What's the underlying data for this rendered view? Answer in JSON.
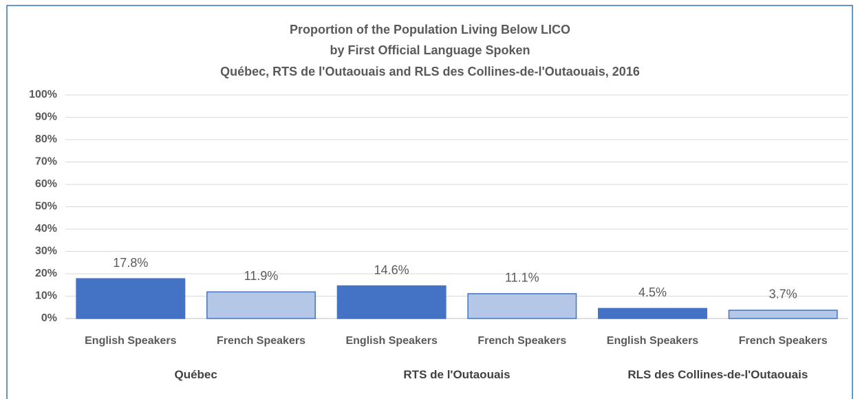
{
  "chart_data": {
    "type": "bar",
    "title": "Proportion of the Population Living Below LICO",
    "subtitle": [
      "by First Official Language Spoken",
      "Québec, RTS de l'Outaouais and RLS des Collines-de-l'Outaouais,  2016"
    ],
    "categories": [
      "Québec",
      "RTS de l'Outaouais",
      "RLS des Collines-de-l'Outaouais"
    ],
    "series": [
      {
        "name": "English Speakers",
        "color": "#4472c4",
        "values": [
          17.8,
          14.6,
          4.5
        ],
        "value_labels": [
          "17.8%",
          "14.6%",
          "4.5%"
        ]
      },
      {
        "name": "French Speakers",
        "color": "#b4c7e7",
        "values": [
          11.9,
          11.1,
          3.7
        ],
        "value_labels": [
          "11.9%",
          "11.1%",
          "3.7%"
        ]
      }
    ],
    "ylim": [
      0,
      100
    ],
    "yticks": [
      {
        "value": 0,
        "label": "0%"
      },
      {
        "value": 10,
        "label": "10%"
      },
      {
        "value": 20,
        "label": "20%"
      },
      {
        "value": 30,
        "label": "30%"
      },
      {
        "value": 40,
        "label": "40%"
      },
      {
        "value": 50,
        "label": "50%"
      },
      {
        "value": 60,
        "label": "60%"
      },
      {
        "value": 70,
        "label": "70%"
      },
      {
        "value": 80,
        "label": "80%"
      },
      {
        "value": 90,
        "label": "90%"
      },
      {
        "value": 100,
        "label": "100%"
      }
    ],
    "grid": true
  }
}
